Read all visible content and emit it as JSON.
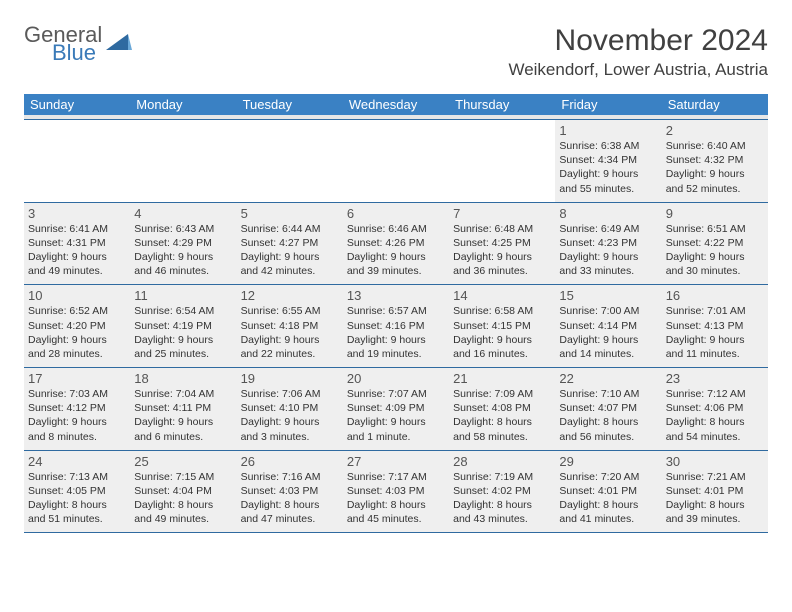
{
  "brand": {
    "line1": "General",
    "line2": "Blue",
    "logo_fill": "#2f6aa0"
  },
  "title": "November 2024",
  "location": "Weikendorf, Lower Austria, Austria",
  "colors": {
    "header_bg": "#3a81c4",
    "header_text": "#ffffff",
    "rule": "#2f6aa0",
    "cell_bg": "#efefef",
    "spacer_bg": "#e7e7e7",
    "body_text": "#333333",
    "daynum_text": "#555555",
    "title_text": "#404040"
  },
  "dow": [
    "Sunday",
    "Monday",
    "Tuesday",
    "Wednesday",
    "Thursday",
    "Friday",
    "Saturday"
  ],
  "weeks": [
    [
      {
        "n": "",
        "sr": "",
        "ss": "",
        "dl": ""
      },
      {
        "n": "",
        "sr": "",
        "ss": "",
        "dl": ""
      },
      {
        "n": "",
        "sr": "",
        "ss": "",
        "dl": ""
      },
      {
        "n": "",
        "sr": "",
        "ss": "",
        "dl": ""
      },
      {
        "n": "",
        "sr": "",
        "ss": "",
        "dl": ""
      },
      {
        "n": "1",
        "sr": "Sunrise: 6:38 AM",
        "ss": "Sunset: 4:34 PM",
        "dl": "Daylight: 9 hours and 55 minutes."
      },
      {
        "n": "2",
        "sr": "Sunrise: 6:40 AM",
        "ss": "Sunset: 4:32 PM",
        "dl": "Daylight: 9 hours and 52 minutes."
      }
    ],
    [
      {
        "n": "3",
        "sr": "Sunrise: 6:41 AM",
        "ss": "Sunset: 4:31 PM",
        "dl": "Daylight: 9 hours and 49 minutes."
      },
      {
        "n": "4",
        "sr": "Sunrise: 6:43 AM",
        "ss": "Sunset: 4:29 PM",
        "dl": "Daylight: 9 hours and 46 minutes."
      },
      {
        "n": "5",
        "sr": "Sunrise: 6:44 AM",
        "ss": "Sunset: 4:27 PM",
        "dl": "Daylight: 9 hours and 42 minutes."
      },
      {
        "n": "6",
        "sr": "Sunrise: 6:46 AM",
        "ss": "Sunset: 4:26 PM",
        "dl": "Daylight: 9 hours and 39 minutes."
      },
      {
        "n": "7",
        "sr": "Sunrise: 6:48 AM",
        "ss": "Sunset: 4:25 PM",
        "dl": "Daylight: 9 hours and 36 minutes."
      },
      {
        "n": "8",
        "sr": "Sunrise: 6:49 AM",
        "ss": "Sunset: 4:23 PM",
        "dl": "Daylight: 9 hours and 33 minutes."
      },
      {
        "n": "9",
        "sr": "Sunrise: 6:51 AM",
        "ss": "Sunset: 4:22 PM",
        "dl": "Daylight: 9 hours and 30 minutes."
      }
    ],
    [
      {
        "n": "10",
        "sr": "Sunrise: 6:52 AM",
        "ss": "Sunset: 4:20 PM",
        "dl": "Daylight: 9 hours and 28 minutes."
      },
      {
        "n": "11",
        "sr": "Sunrise: 6:54 AM",
        "ss": "Sunset: 4:19 PM",
        "dl": "Daylight: 9 hours and 25 minutes."
      },
      {
        "n": "12",
        "sr": "Sunrise: 6:55 AM",
        "ss": "Sunset: 4:18 PM",
        "dl": "Daylight: 9 hours and 22 minutes."
      },
      {
        "n": "13",
        "sr": "Sunrise: 6:57 AM",
        "ss": "Sunset: 4:16 PM",
        "dl": "Daylight: 9 hours and 19 minutes."
      },
      {
        "n": "14",
        "sr": "Sunrise: 6:58 AM",
        "ss": "Sunset: 4:15 PM",
        "dl": "Daylight: 9 hours and 16 minutes."
      },
      {
        "n": "15",
        "sr": "Sunrise: 7:00 AM",
        "ss": "Sunset: 4:14 PM",
        "dl": "Daylight: 9 hours and 14 minutes."
      },
      {
        "n": "16",
        "sr": "Sunrise: 7:01 AM",
        "ss": "Sunset: 4:13 PM",
        "dl": "Daylight: 9 hours and 11 minutes."
      }
    ],
    [
      {
        "n": "17",
        "sr": "Sunrise: 7:03 AM",
        "ss": "Sunset: 4:12 PM",
        "dl": "Daylight: 9 hours and 8 minutes."
      },
      {
        "n": "18",
        "sr": "Sunrise: 7:04 AM",
        "ss": "Sunset: 4:11 PM",
        "dl": "Daylight: 9 hours and 6 minutes."
      },
      {
        "n": "19",
        "sr": "Sunrise: 7:06 AM",
        "ss": "Sunset: 4:10 PM",
        "dl": "Daylight: 9 hours and 3 minutes."
      },
      {
        "n": "20",
        "sr": "Sunrise: 7:07 AM",
        "ss": "Sunset: 4:09 PM",
        "dl": "Daylight: 9 hours and 1 minute."
      },
      {
        "n": "21",
        "sr": "Sunrise: 7:09 AM",
        "ss": "Sunset: 4:08 PM",
        "dl": "Daylight: 8 hours and 58 minutes."
      },
      {
        "n": "22",
        "sr": "Sunrise: 7:10 AM",
        "ss": "Sunset: 4:07 PM",
        "dl": "Daylight: 8 hours and 56 minutes."
      },
      {
        "n": "23",
        "sr": "Sunrise: 7:12 AM",
        "ss": "Sunset: 4:06 PM",
        "dl": "Daylight: 8 hours and 54 minutes."
      }
    ],
    [
      {
        "n": "24",
        "sr": "Sunrise: 7:13 AM",
        "ss": "Sunset: 4:05 PM",
        "dl": "Daylight: 8 hours and 51 minutes."
      },
      {
        "n": "25",
        "sr": "Sunrise: 7:15 AM",
        "ss": "Sunset: 4:04 PM",
        "dl": "Daylight: 8 hours and 49 minutes."
      },
      {
        "n": "26",
        "sr": "Sunrise: 7:16 AM",
        "ss": "Sunset: 4:03 PM",
        "dl": "Daylight: 8 hours and 47 minutes."
      },
      {
        "n": "27",
        "sr": "Sunrise: 7:17 AM",
        "ss": "Sunset: 4:03 PM",
        "dl": "Daylight: 8 hours and 45 minutes."
      },
      {
        "n": "28",
        "sr": "Sunrise: 7:19 AM",
        "ss": "Sunset: 4:02 PM",
        "dl": "Daylight: 8 hours and 43 minutes."
      },
      {
        "n": "29",
        "sr": "Sunrise: 7:20 AM",
        "ss": "Sunset: 4:01 PM",
        "dl": "Daylight: 8 hours and 41 minutes."
      },
      {
        "n": "30",
        "sr": "Sunrise: 7:21 AM",
        "ss": "Sunset: 4:01 PM",
        "dl": "Daylight: 8 hours and 39 minutes."
      }
    ]
  ]
}
